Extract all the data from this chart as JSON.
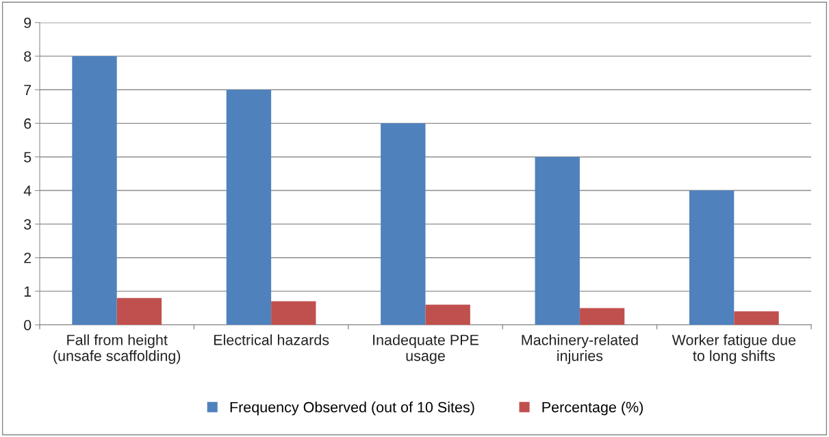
{
  "chart_data": {
    "type": "bar",
    "categories": [
      "Fall from height\n(unsafe scaffolding)",
      "Electrical hazards",
      "Inadequate PPE\nusage",
      "Machinery-related\ninjuries",
      "Worker fatigue due\nto long shifts"
    ],
    "series": [
      {
        "name": "Frequency Observed (out of 10 Sites)",
        "color": "#4f81bd",
        "values": [
          8,
          7,
          6,
          5,
          4
        ]
      },
      {
        "name": "Percentage (%)",
        "color": "#c0504d",
        "values": [
          0.8,
          0.7,
          0.6,
          0.5,
          0.4
        ]
      }
    ],
    "ylim": [
      0,
      9
    ],
    "yticks": [
      0,
      1,
      2,
      3,
      4,
      5,
      6,
      7,
      8,
      9
    ],
    "grid": "y",
    "legend": "bottom"
  }
}
